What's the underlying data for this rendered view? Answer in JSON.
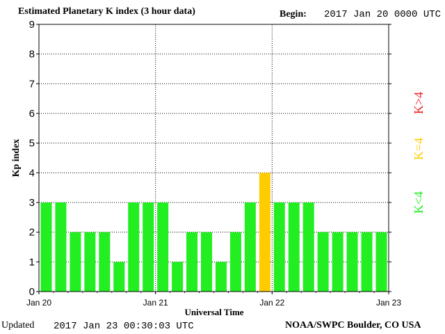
{
  "title": "Estimated Planetary K index (3 hour data)",
  "begin_label": "Begin:",
  "begin_value": "2017 Jan 20 0000 UTC",
  "updated_label": "Updated",
  "updated_value": "2017 Jan 23 00:30:03 UTC",
  "source": "NOAA/SWPC Boulder, CO USA",
  "colors": {
    "low": "#22ee22",
    "mid": "#ffcc00",
    "high": "#ee2222",
    "frame": "#000000",
    "grid": "#000000"
  },
  "legend": {
    "low": "K<4",
    "mid": "K=4",
    "high": "K>4"
  },
  "chart_data": {
    "type": "bar",
    "xlabel": "Universal Time",
    "ylabel": "Kp index",
    "ylim": [
      0,
      9
    ],
    "yticks": [
      0,
      1,
      2,
      3,
      4,
      5,
      6,
      7,
      8,
      9
    ],
    "xtick_labels": [
      "Jan 20",
      "Jan 21",
      "Jan 22",
      "Jan 23"
    ],
    "grid": true,
    "values": [
      3,
      3,
      2,
      2,
      2,
      1,
      3,
      3,
      3,
      1,
      2,
      2,
      1,
      2,
      3,
      4,
      3,
      3,
      3,
      2,
      2,
      2,
      2,
      2
    ]
  }
}
